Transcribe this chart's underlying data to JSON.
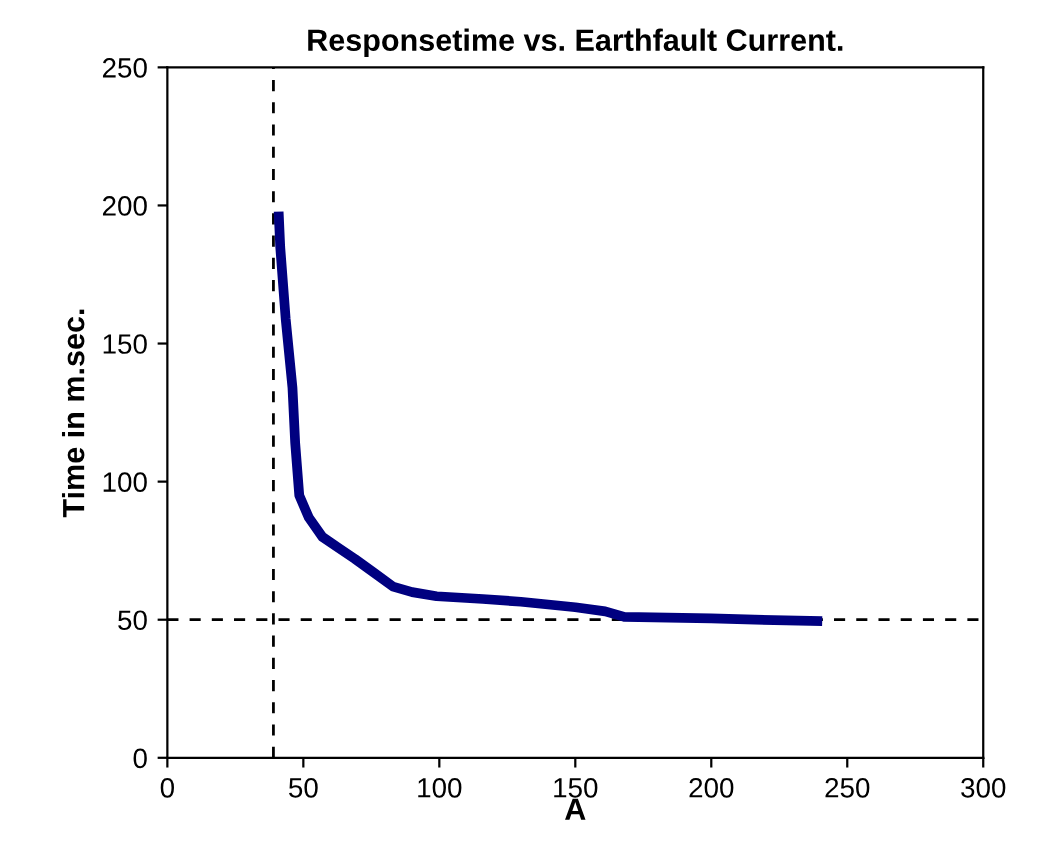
{
  "chart_data": {
    "type": "line",
    "title": "Responsetime vs. Earthfault Current.",
    "xlabel": "A",
    "ylabel": "Time in m.sec.",
    "series": [
      {
        "color": "#000080",
        "x": [
          41,
          41.5,
          43.5,
          46,
          47,
          48.5,
          52,
          57,
          63,
          69,
          76,
          83,
          90,
          99,
          116,
          130,
          140,
          150,
          161,
          168,
          200,
          216,
          239
        ],
        "values": [
          196,
          185,
          159,
          134,
          114,
          95,
          87,
          80,
          76,
          72,
          67,
          62,
          60,
          58.5,
          57.5,
          56.5,
          55.5,
          54.5,
          53,
          51,
          50.5,
          50,
          49.5
        ]
      }
    ],
    "xlim": [
      0,
      300
    ],
    "xticks": [
      0,
      50,
      100,
      150,
      200,
      250,
      300
    ],
    "ylim": [
      0,
      250
    ],
    "yticks": [
      0,
      50,
      100,
      150,
      200,
      250
    ],
    "grid": false,
    "legend": false,
    "marker": "none",
    "line_style": "solid",
    "ref_lines": [
      {
        "axis": "x",
        "value": 39,
        "line_style": "dashed",
        "color": "#000000"
      },
      {
        "axis": "y",
        "value": 50,
        "line_style": "dashed",
        "color": "#000000"
      }
    ]
  }
}
